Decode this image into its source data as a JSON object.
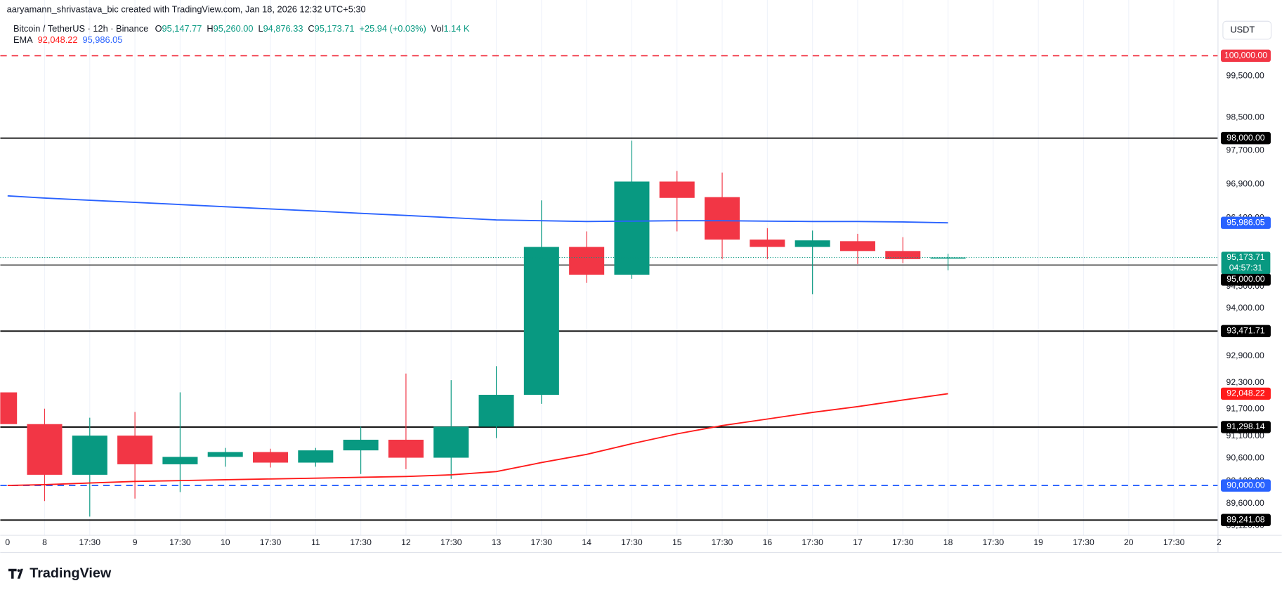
{
  "header": {
    "credit": "aaryamann_shrivastava_bic created with TradingView.com, Jan 18, 2026 12:32 UTC+5:30",
    "symbol": "Bitcoin / TetherUS · 12h · Binance",
    "ohlc": [
      {
        "key": "O",
        "label": "95,147.77"
      },
      {
        "key": "H",
        "label": "95,260.00"
      },
      {
        "key": "L",
        "label": "94,876.33"
      },
      {
        "key": "C",
        "label": "95,173.71"
      }
    ],
    "change": "+25.94 (+0.03%)",
    "volume": {
      "key": "Vol",
      "label": "1.14 K"
    },
    "currency": "USDT",
    "brand": "TradingView"
  },
  "chart_data": {
    "type": "candlestick",
    "log": true,
    "grid": true,
    "ylim": [
      88960,
      100970
    ],
    "yticks": [
      {
        "value": 89120,
        "label": "89,120.00"
      },
      {
        "value": 89600,
        "label": "89,600.00"
      },
      {
        "value": 90100,
        "label": "90,100.00"
      },
      {
        "value": 90600,
        "label": "90,600.00"
      },
      {
        "value": 91100,
        "label": "91,100.00"
      },
      {
        "value": 91700,
        "label": "91,700.00"
      },
      {
        "value": 92300,
        "label": "92,300.00"
      },
      {
        "value": 92900,
        "label": "92,900.00"
      },
      {
        "value": 94000,
        "label": "94,000.00"
      },
      {
        "value": 94500,
        "label": "94,500.00"
      },
      {
        "value": 95200,
        "label": "95,200.00"
      },
      {
        "value": 96100,
        "label": "96,100.00"
      },
      {
        "value": 96900,
        "label": "96,900.00"
      },
      {
        "value": 97700,
        "label": "97,700.00"
      },
      {
        "value": 98500,
        "label": "98,500.00"
      },
      {
        "value": 99500,
        "label": "99,500.00"
      }
    ],
    "categories": [
      "0",
      "8",
      "17:30",
      "9",
      "17:30",
      "10",
      "17:30",
      "11",
      "17:30",
      "12",
      "17:30",
      "13",
      "17:30",
      "14",
      "17:30",
      "15",
      "17:30",
      "16",
      "17:30",
      "17",
      "17:30",
      "18",
      "17:30",
      "19",
      "17:30",
      "20",
      "17:30",
      "2"
    ],
    "up_color": "#089981",
    "down_color": "#f23645",
    "open": [
      92078,
      91364,
      90236,
      91107,
      90469,
      90633,
      90741,
      90506,
      90778,
      91015,
      90615,
      91307,
      92023,
      95420,
      94773,
      96962,
      96593,
      95593,
      95420,
      95555,
      95325,
      95147.77,
      null,
      null,
      null,
      null,
      null,
      null
    ],
    "high": [
      92078,
      91710,
      91508,
      91637,
      92078,
      90833,
      90815,
      90833,
      91307,
      92504,
      92355,
      92671,
      96516,
      95784,
      97938,
      97215,
      97176,
      95861,
      95804,
      95727,
      95650,
      95260,
      null,
      null,
      null,
      null,
      null,
      null
    ],
    "low": [
      91364,
      89658,
      89316,
      89711,
      89855,
      90415,
      90397,
      90415,
      90253,
      90361,
      90144,
      91051,
      91820,
      94583,
      94678,
      95784,
      95135,
      95135,
      94319,
      95020,
      95040,
      94876.33,
      null,
      null,
      null,
      null,
      null,
      null
    ],
    "close": [
      91364,
      90236,
      91107,
      90469,
      90633,
      90741,
      90506,
      90778,
      91015,
      90615,
      91307,
      92023,
      95420,
      94773,
      96962,
      96574,
      95593,
      95420,
      95574,
      95325,
      95135,
      95173.71,
      null,
      null,
      null,
      null,
      null,
      null
    ],
    "indicator": {
      "name": "EMA",
      "lines": [
        {
          "color": "#ff1a1a",
          "value_label": "92,048.22",
          "values": [
            90000,
            90018,
            90054,
            90090,
            90108,
            90126,
            90144,
            90162,
            90180,
            90199,
            90235,
            90307,
            90507,
            90689,
            90926,
            91146,
            91331,
            91478,
            91627,
            91757,
            91906,
            92048.22,
            null,
            null,
            null,
            null,
            null,
            null
          ]
        },
        {
          "color": "#2962ff",
          "value_label": "95,986.05",
          "values": [
            96623,
            96571,
            96519,
            96469,
            96417,
            96365,
            96313,
            96263,
            96209,
            96159,
            96107,
            96055,
            96036,
            96017,
            96026,
            96036,
            96036,
            96026,
            96017,
            96017,
            96007,
            95986.05,
            null,
            null,
            null,
            null,
            null,
            null
          ]
        }
      ]
    },
    "levels": [
      {
        "value": 100000,
        "label": "100,000.00",
        "color": "#f23645",
        "style": "dashed"
      },
      {
        "value": 98000,
        "label": "98,000.00",
        "color": "#000000",
        "style": "solid"
      },
      {
        "value": 95000,
        "label": "95,000.00",
        "color": "#000000",
        "style": "thin"
      },
      {
        "value": 93471.71,
        "label": "93,471.71",
        "color": "#000000",
        "style": "solid"
      },
      {
        "value": 91298.14,
        "label": "91,298.14",
        "color": "#000000",
        "style": "solid"
      },
      {
        "value": 90000,
        "label": "90,000.00",
        "color": "#2962ff",
        "style": "dashed"
      },
      {
        "value": 89241.08,
        "label": "89,241.08",
        "color": "#000000",
        "style": "solid"
      }
    ],
    "last_price": {
      "value": 95173.71,
      "label": "95,173.71",
      "countdown": "04:57:31",
      "color": "#089981"
    }
  }
}
